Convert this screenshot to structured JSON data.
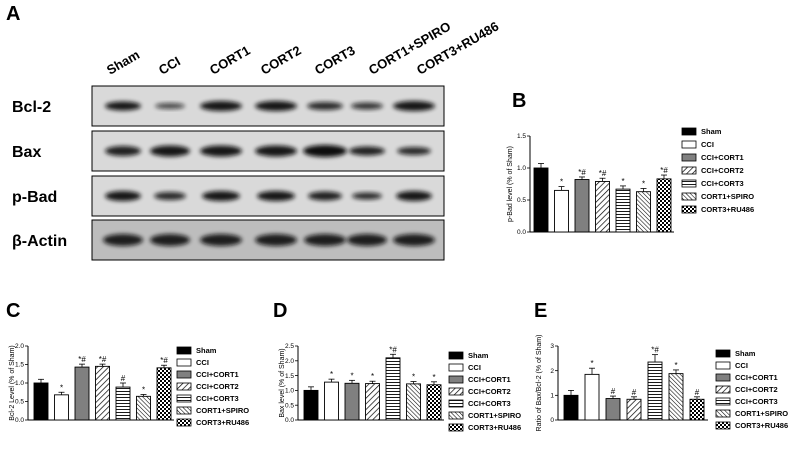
{
  "panel_a": {
    "letter": "A",
    "lanes": [
      "Sham",
      "CCI",
      "CORT1",
      "CORT2",
      "CORT3",
      "CORT1+SPIRO",
      "CORT3+RU486"
    ],
    "rows": [
      "Bcl-2",
      "Bax",
      "p-Bad",
      "β-Actin"
    ]
  },
  "colors": {
    "sham": "#000000",
    "cci": "#ffffff",
    "cort1": "#808080",
    "stroke": "#000000"
  },
  "chart_data": [
    {
      "id": "B",
      "type": "bar",
      "letter": "B",
      "ylabel": "p-Bad level (% of Sham)",
      "ylim": [
        0,
        1.5
      ],
      "yticks": [
        "0.0",
        "0.5",
        "1.0",
        "1.5"
      ],
      "categories": [
        "Sham",
        "CCI",
        "CCI+CORT1",
        "CCI+CORT2",
        "CCI+CORT3",
        "CORT1+SPIRO",
        "CORT3+RU486"
      ],
      "values": [
        1.0,
        0.65,
        0.82,
        0.79,
        0.67,
        0.63,
        0.83
      ],
      "errors": [
        0.07,
        0.06,
        0.04,
        0.05,
        0.05,
        0.05,
        0.06
      ],
      "annotations": [
        "",
        "*",
        "*#",
        "*#",
        "*",
        "*",
        "*#"
      ],
      "legend": [
        "Sham",
        "CCI",
        "CCI+CORT1",
        "CCI+CORT2",
        "CCI+CORT3",
        "CORT1+SPIRO",
        "CORT3+RU486"
      ],
      "legend_position": "right"
    },
    {
      "id": "C",
      "type": "bar",
      "letter": "C",
      "ylabel": "Bcl-2 Level (% of Sham)",
      "ylim": [
        0,
        2.0
      ],
      "yticks": [
        "0.0",
        "0.5",
        "1.0",
        "1.5",
        "2.0"
      ],
      "categories": [
        "Sham",
        "CCI",
        "CCI+CORT1",
        "CCI+CORT2",
        "CCI+CORT3",
        "CORT1+SPIRO",
        "CORT3+RU486"
      ],
      "values": [
        1.0,
        0.68,
        1.43,
        1.45,
        0.89,
        0.64,
        1.41
      ],
      "errors": [
        0.1,
        0.07,
        0.08,
        0.06,
        0.11,
        0.05,
        0.07
      ],
      "annotations": [
        "",
        "*",
        "*#",
        "*#",
        "#",
        "*",
        "*#"
      ],
      "legend": [
        "Sham",
        "CCI",
        "CCI+CORT1",
        "CCI+CORT2",
        "CCI+CORT3",
        "CORT1+SPIRO",
        "CORT3+RU486"
      ],
      "legend_position": "right"
    },
    {
      "id": "D",
      "type": "bar",
      "letter": "D",
      "ylabel": "Bax level (% of Sham)",
      "ylim": [
        0,
        2.5
      ],
      "yticks": [
        "0.0",
        "0.5",
        "1.0",
        "1.5",
        "2.0",
        "2.5"
      ],
      "categories": [
        "Sham",
        "CCI",
        "CCI+CORT1",
        "CCI+CORT2",
        "CCI+CORT3",
        "CORT1+SPIRO",
        "CORT3+RU486"
      ],
      "values": [
        1.0,
        1.28,
        1.24,
        1.23,
        2.1,
        1.22,
        1.19
      ],
      "errors": [
        0.12,
        0.1,
        0.1,
        0.08,
        0.12,
        0.08,
        0.1
      ],
      "annotations": [
        "",
        "*",
        "*",
        "*",
        "*#",
        "*",
        "*"
      ],
      "legend": [
        "Sham",
        "CCI",
        "CCI+CORT1",
        "CCI+CORT2",
        "CCI+CORT3",
        "CORT1+SPIRO",
        "CORT3+RU486"
      ],
      "legend_position": "right"
    },
    {
      "id": "E",
      "type": "bar",
      "letter": "E",
      "ylabel": "Ratio of Bax/Bcl-2 (% of Sham)",
      "ylim": [
        0,
        3
      ],
      "yticks": [
        "0",
        "1",
        "2",
        "3"
      ],
      "categories": [
        "Sham",
        "CCI",
        "CCI+CORT1",
        "CCI+CORT2",
        "CCI+CORT3",
        "CORT1+SPIRO",
        "CORT3+RU486"
      ],
      "values": [
        1.0,
        1.85,
        0.87,
        0.84,
        2.35,
        1.88,
        0.84
      ],
      "errors": [
        0.2,
        0.25,
        0.1,
        0.1,
        0.3,
        0.15,
        0.1
      ],
      "annotations": [
        "",
        "*",
        "#",
        "#",
        "*#",
        "*",
        "#"
      ],
      "legend": [
        "Sham",
        "CCI",
        "CCI+CORT1",
        "CCI+CORT2",
        "CCI+CORT3",
        "CORT1+SPIRO",
        "CORT3+RU486"
      ],
      "legend_position": "right"
    }
  ]
}
